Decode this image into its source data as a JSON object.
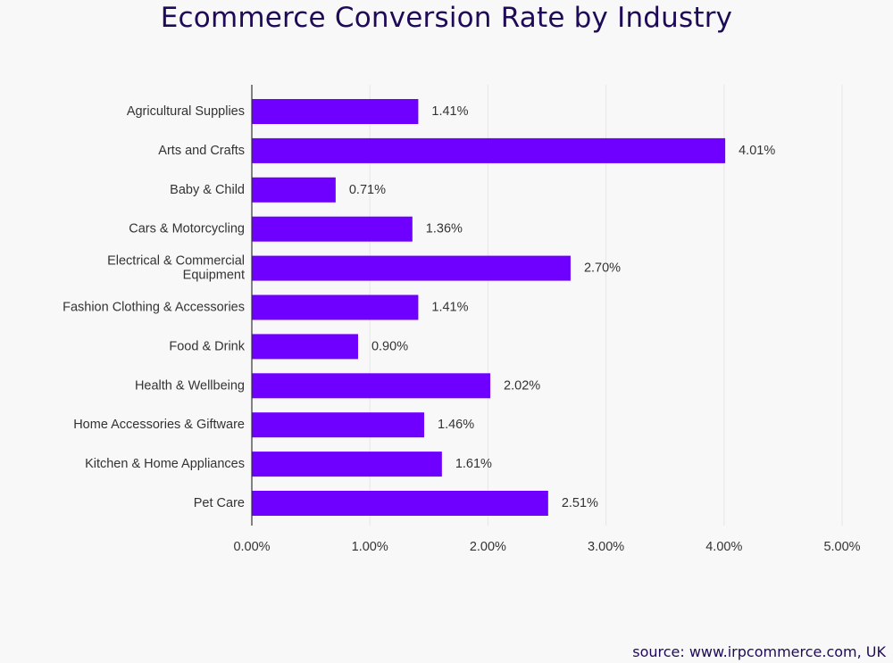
{
  "title": "Ecommerce Conversion Rate by Industry",
  "source": "source: www.irpcommerce.com, UK",
  "colors": {
    "bar": "#6f00ff",
    "title": "#1f0a57",
    "grid": "#e6e6e6",
    "axis": "#333333",
    "text": "#333333"
  },
  "chart_data": {
    "type": "bar",
    "orientation": "horizontal",
    "title": "Ecommerce Conversion Rate by Industry",
    "xlabel": "",
    "ylabel": "",
    "xlim": [
      0,
      5
    ],
    "grid": true,
    "legend": "none",
    "categories": [
      "Agricultural Supplies",
      "Arts and Crafts",
      "Baby & Child",
      "Cars & Motorcycling",
      "Electrical & Commercial Equipment",
      "Fashion Clothing & Accessories",
      "Food & Drink",
      "Health & Wellbeing",
      "Home Accessories & Giftware",
      "Kitchen & Home Appliances",
      "Pet Care"
    ],
    "values": [
      1.41,
      4.01,
      0.71,
      1.36,
      2.7,
      1.41,
      0.9,
      2.02,
      1.46,
      1.61,
      2.51
    ],
    "value_labels": [
      "1.41%",
      "4.01%",
      "0.71%",
      "1.36%",
      "2.70%",
      "1.41%",
      "0.90%",
      "2.02%",
      "1.46%",
      "1.61%",
      "2.51%"
    ],
    "x_ticks": [
      0,
      1,
      2,
      3,
      4,
      5
    ],
    "x_tick_labels": [
      "0.00%",
      "1.00%",
      "2.00%",
      "3.00%",
      "4.00%",
      "5.00%"
    ]
  }
}
